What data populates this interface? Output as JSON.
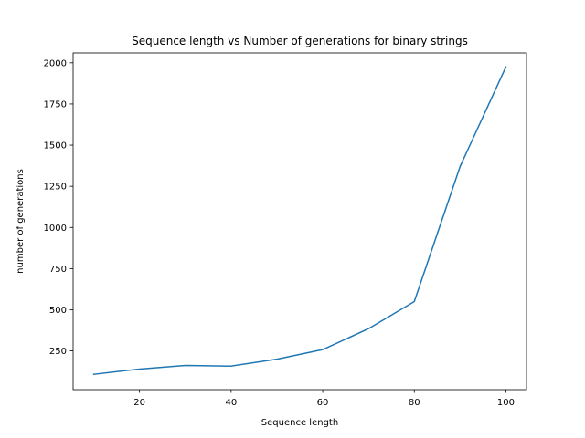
{
  "chart_data": {
    "type": "line",
    "title": "Sequence length vs Number of generations for binary strings",
    "xlabel": "Sequence length",
    "ylabel": "number of generations",
    "xlim": [
      5.5,
      104.5
    ],
    "ylim": [
      15,
      2060
    ],
    "xticks": [
      20,
      40,
      60,
      80,
      100
    ],
    "yticks": [
      250,
      500,
      750,
      1000,
      1250,
      1500,
      1750,
      2000
    ],
    "grid": false,
    "series": [
      {
        "color": "#1f77b4",
        "x": [
          10,
          20,
          30,
          40,
          50,
          60,
          70,
          80,
          90,
          100
        ],
        "y": [
          108,
          140,
          162,
          158,
          200,
          258,
          385,
          550,
          1370,
          1975
        ]
      }
    ]
  }
}
